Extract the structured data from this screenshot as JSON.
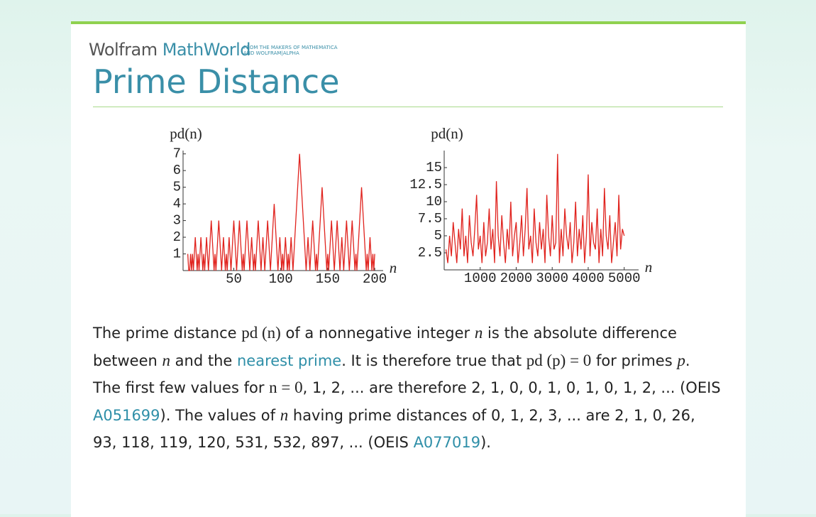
{
  "header": {
    "logo": [
      "Wolfram",
      "MathWorld"
    ],
    "tagline": [
      "FROM THE MAKERS OF MATHEMATICA",
      "AND WOLFRAM|ALPHA"
    ],
    "title": "Prime Distance"
  },
  "chart_data": [
    {
      "type": "line",
      "ylabel": "pd(n)",
      "xlabel": "n",
      "color": "#e0231e",
      "xlim": [
        -4,
        209
      ],
      "xticks": [
        50,
        100,
        150,
        200
      ],
      "ylim": [
        0,
        7.2
      ],
      "yticks": [
        1,
        2,
        3,
        4,
        5,
        6,
        7
      ],
      "x": [
        1,
        2,
        3,
        4,
        5,
        6,
        7,
        8,
        9,
        10,
        11,
        12,
        13,
        14,
        15,
        16,
        17,
        18,
        19,
        20,
        21,
        22,
        23,
        24,
        25,
        26,
        27,
        28,
        29,
        30,
        31,
        32,
        33,
        34,
        35,
        36,
        37,
        38,
        39,
        40,
        41,
        42,
        43,
        44,
        45,
        46,
        47,
        48,
        49,
        50,
        51,
        52,
        53,
        54,
        55,
        56,
        57,
        58,
        59,
        60,
        61,
        62,
        63,
        64,
        65,
        66,
        67,
        68,
        69,
        70,
        71,
        72,
        73,
        74,
        75,
        76,
        77,
        78,
        79,
        80,
        81,
        82,
        83,
        84,
        85,
        86,
        87,
        88,
        89,
        90,
        91,
        92,
        93,
        94,
        95,
        96,
        97,
        98,
        99,
        100,
        101,
        102,
        103,
        104,
        105,
        106,
        107,
        108,
        109,
        110,
        111,
        112,
        113,
        114,
        115,
        116,
        117,
        118,
        119,
        120,
        121,
        122,
        123,
        124,
        125,
        126,
        127,
        128,
        129,
        130,
        131,
        132,
        133,
        134,
        135,
        136,
        137,
        138,
        139,
        140,
        141,
        142,
        143,
        144,
        145,
        146,
        147,
        148,
        149,
        150,
        151,
        152,
        153,
        154,
        155,
        156,
        157,
        158,
        159,
        160,
        161,
        162,
        163,
        164,
        165,
        166,
        167,
        168,
        169,
        170,
        171,
        172,
        173,
        174,
        175,
        176,
        177,
        178,
        179,
        180,
        181,
        182,
        183,
        184,
        185,
        186,
        187,
        188,
        189,
        190,
        191,
        192,
        193,
        194,
        195,
        196,
        197,
        198,
        199,
        200
      ],
      "values": [
        1,
        0,
        0,
        1,
        0,
        1,
        0,
        1,
        2,
        1,
        0,
        1,
        0,
        1,
        2,
        1,
        0,
        1,
        0,
        1,
        2,
        1,
        0,
        1,
        2,
        3,
        2,
        1,
        0,
        1,
        0,
        1,
        2,
        3,
        2,
        1,
        0,
        1,
        2,
        1,
        0,
        1,
        0,
        1,
        2,
        1,
        0,
        1,
        2,
        3,
        2,
        1,
        0,
        1,
        2,
        3,
        2,
        1,
        0,
        1,
        0,
        1,
        2,
        3,
        2,
        1,
        0,
        1,
        2,
        1,
        0,
        1,
        0,
        1,
        2,
        3,
        2,
        1,
        0,
        1,
        2,
        1,
        0,
        1,
        2,
        3,
        2,
        1,
        0,
        1,
        2,
        3,
        4,
        3,
        2,
        1,
        0,
        1,
        2,
        1,
        0,
        1,
        0,
        1,
        2,
        1,
        0,
        1,
        0,
        1,
        2,
        1,
        0,
        1,
        2,
        3,
        4,
        5,
        6,
        7,
        6,
        5,
        4,
        3,
        2,
        1,
        0,
        1,
        2,
        1,
        0,
        1,
        2,
        3,
        2,
        1,
        0,
        1,
        0,
        1,
        2,
        3,
        4,
        5,
        4,
        3,
        2,
        1,
        0,
        1,
        0,
        1,
        2,
        3,
        2,
        1,
        0,
        1,
        2,
        3,
        2,
        1,
        0,
        1,
        2,
        1,
        0,
        1,
        2,
        3,
        2,
        1,
        0,
        1,
        2,
        3,
        2,
        1,
        0,
        1,
        0,
        1,
        2,
        3,
        4,
        5,
        4,
        3,
        2,
        1,
        0,
        1,
        0,
        1,
        2,
        1,
        0,
        1,
        0,
        1
      ]
    },
    {
      "type": "line",
      "ylabel": "pd(n)",
      "xlabel": "n",
      "color": "#e0231e",
      "xlim": [
        0,
        5400
      ],
      "xticks": [
        1000,
        2000,
        3000,
        4000,
        5000
      ],
      "ylim": [
        0,
        17.5
      ],
      "yticks": [
        2.5,
        5,
        7.5,
        10,
        12.5,
        15
      ],
      "x": [
        50,
        100,
        150,
        200,
        250,
        300,
        350,
        400,
        450,
        500,
        550,
        600,
        650,
        700,
        750,
        800,
        850,
        900,
        950,
        1000,
        1050,
        1100,
        1150,
        1200,
        1250,
        1300,
        1350,
        1400,
        1450,
        1500,
        1550,
        1600,
        1650,
        1700,
        1750,
        1800,
        1850,
        1900,
        1950,
        2000,
        2050,
        2100,
        2150,
        2200,
        2250,
        2300,
        2350,
        2400,
        2450,
        2500,
        2550,
        2600,
        2650,
        2700,
        2750,
        2800,
        2850,
        2900,
        2950,
        3000,
        3050,
        3100,
        3150,
        3200,
        3250,
        3300,
        3350,
        3400,
        3450,
        3500,
        3550,
        3600,
        3650,
        3700,
        3750,
        3800,
        3850,
        3900,
        3950,
        4000,
        4050,
        4100,
        4150,
        4200,
        4250,
        4300,
        4350,
        4400,
        4450,
        4500,
        4550,
        4600,
        4650,
        4700,
        4750,
        4800,
        4850,
        4900,
        4950,
        5000
      ],
      "values": [
        3,
        1,
        5,
        2,
        7,
        4,
        1,
        6,
        3,
        9,
        2,
        5,
        1,
        8,
        4,
        2,
        6,
        11,
        3,
        5,
        1,
        7,
        2,
        4,
        9,
        3,
        6,
        1,
        13,
        5,
        2,
        8,
        4,
        1,
        6,
        3,
        10,
        2,
        5,
        7,
        1,
        4,
        8,
        2,
        6,
        12,
        3,
        5,
        1,
        9,
        4,
        2,
        7,
        3,
        6,
        1,
        11,
        5,
        2,
        8,
        3,
        4,
        17,
        1,
        6,
        2,
        9,
        5,
        3,
        7,
        1,
        4,
        10,
        2,
        6,
        3,
        8,
        1,
        5,
        14,
        2,
        7,
        4,
        3,
        9,
        1,
        6,
        2,
        12,
        5,
        3,
        8,
        1,
        4,
        7,
        2,
        11,
        3,
        6,
        5
      ]
    }
  ],
  "paragraph": [
    "The prime distance ",
    "pd (n)",
    " of a nonnegative integer ",
    "n",
    " is the absolute difference between ",
    "n",
    " and the ",
    "nearest prime",
    ". It is therefore true that ",
    "pd (p) = 0",
    " for primes ",
    "p",
    ". The first few values for ",
    "n = 0",
    ", 1, 2, ... are therefore 2, 1, 0, 0, 1, 0, 1, 0, 1, 2, ... (OEIS ",
    "A051699",
    "). The values of ",
    "n",
    " having prime distances of 0, 1, 2, 3, ... are 2, 1, 0, 26, 93, 118, 119, 120, 531, 532, 897, ... (OEIS ",
    "A077019",
    ")."
  ]
}
